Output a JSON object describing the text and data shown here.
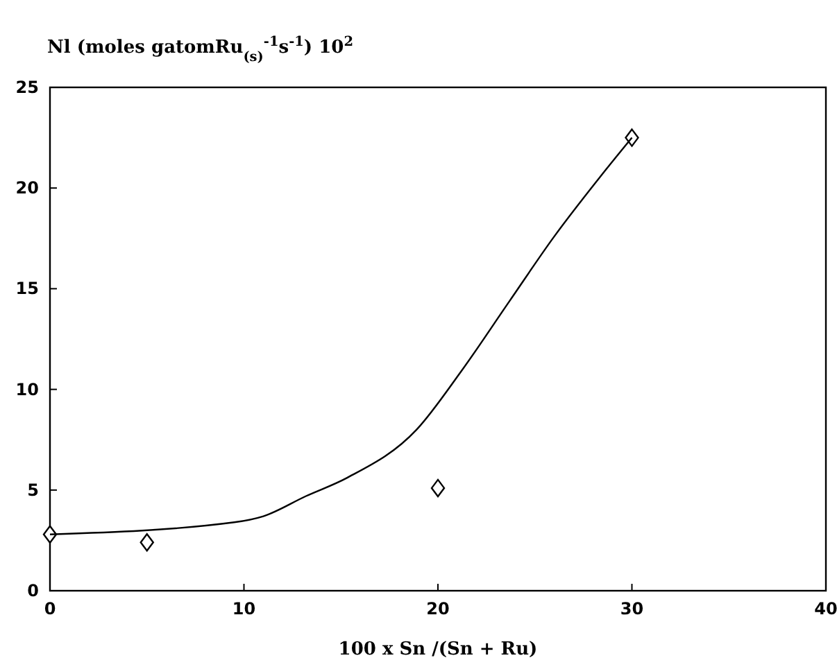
{
  "chart_data": {
    "type": "scatter",
    "ylabel": "Nl (moles  gatomRu$_{(s)}$$^{-1}$s$^{-1}$) 10$^{2}$",
    "xlabel": "100 x Sn /(Sn + Ru)",
    "xlim": [
      0,
      40
    ],
    "xticks": [
      0,
      10,
      20,
      30,
      40
    ],
    "ylim": [
      0,
      25
    ],
    "yticks": [
      0,
      5,
      10,
      15,
      20,
      25
    ],
    "grid": false,
    "marker": "diamond",
    "series": [
      {
        "color": "#000000",
        "x": [
          0,
          5,
          20,
          30
        ],
        "values": [
          2.8,
          2.4,
          5.1,
          22.5
        ]
      },
      {
        "type": "line",
        "color": "#000000",
        "marker": "none",
        "x": [
          0,
          9.5,
          11,
          13.2,
          15.3,
          18.9,
          21.2,
          23.7,
          26,
          28.4,
          30
        ],
        "values": [
          2.8,
          3.4,
          3.7,
          4.7,
          5.6,
          8,
          10.9,
          14.4,
          17.6,
          20.6,
          22.5
        ]
      }
    ]
  }
}
